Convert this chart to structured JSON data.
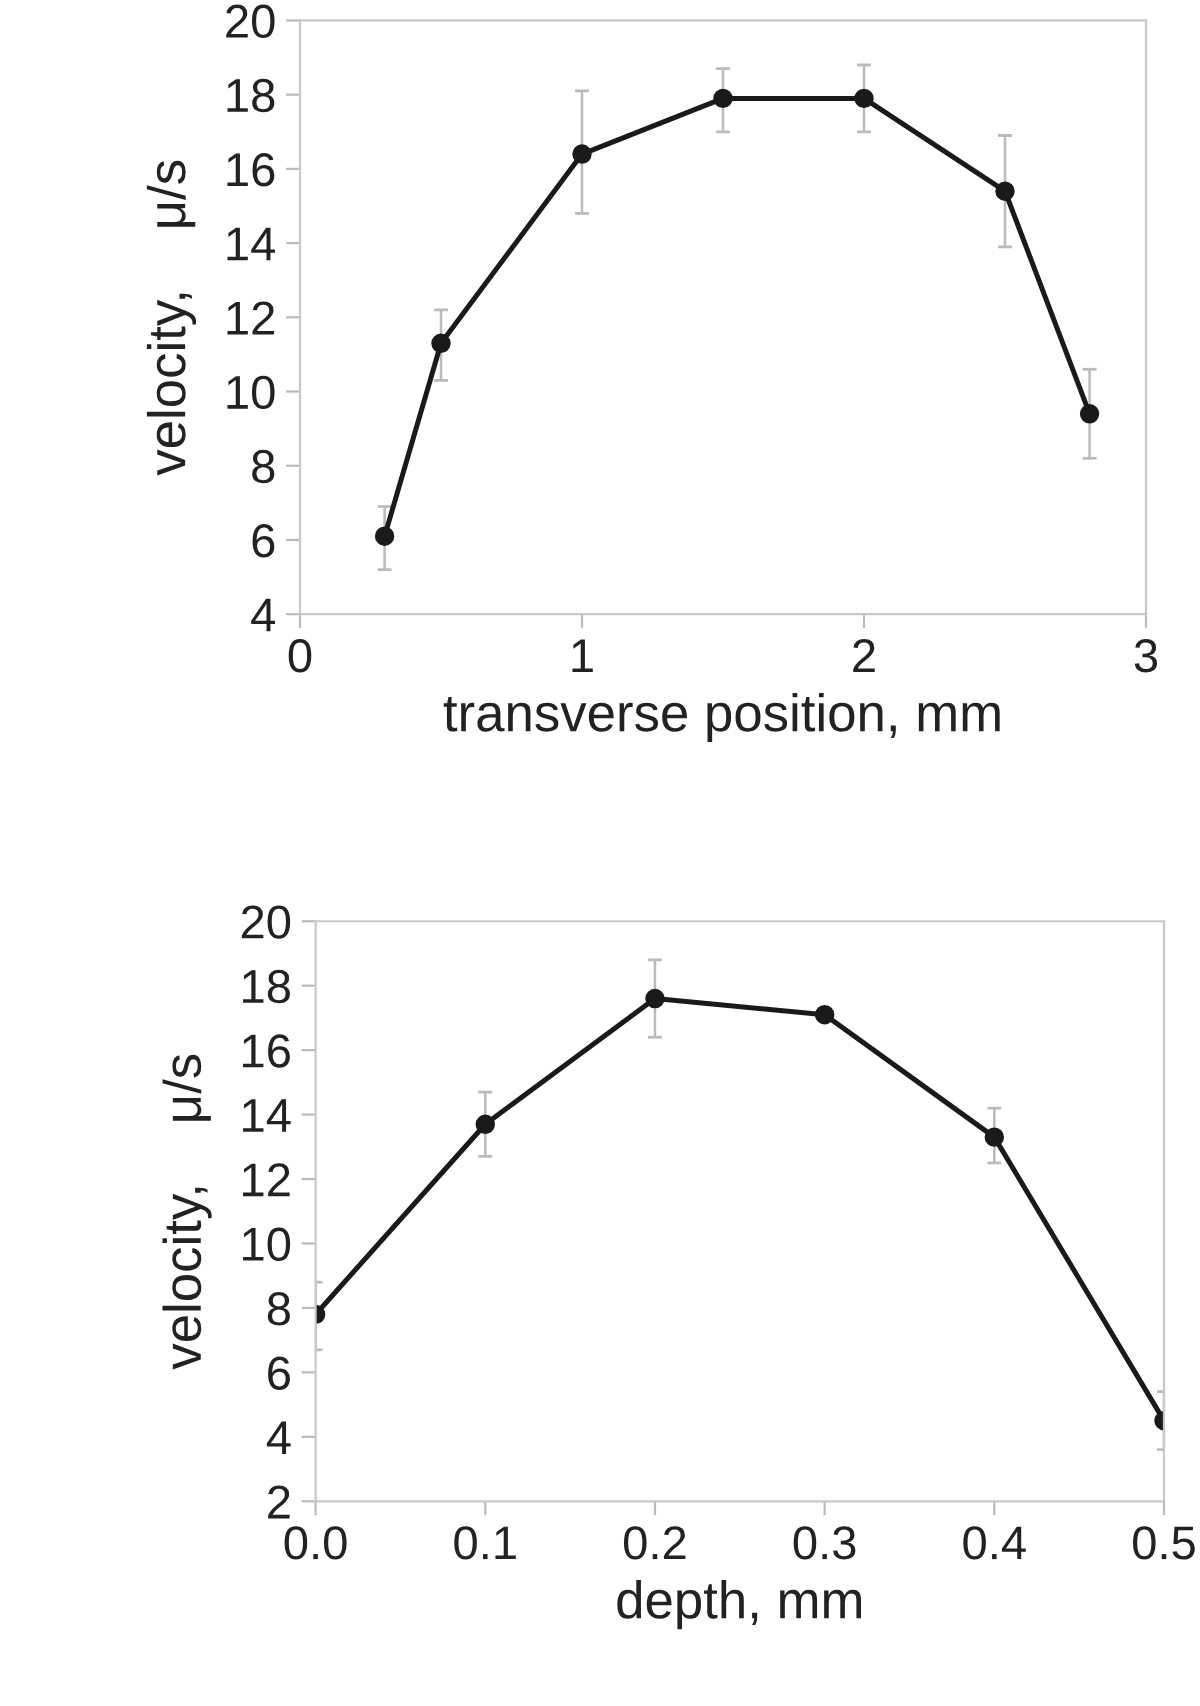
{
  "chart_data": [
    {
      "type": "line",
      "xlabel": "transverse position, mm",
      "ylabel": "velocity,    μ/s",
      "x": [
        0.3,
        0.5,
        1,
        1.5,
        2,
        2.5,
        2.8
      ],
      "series": [
        {
          "color": "#1a1a1a",
          "values": [
            6.1,
            11.3,
            16.4,
            17.9,
            17.9,
            15.4,
            9.4
          ],
          "errors": [
            [
              5.2,
              6.9
            ],
            [
              10.3,
              12.2
            ],
            [
              14.8,
              18.1
            ],
            [
              17.0,
              18.7
            ],
            [
              17.0,
              18.8
            ],
            [
              13.9,
              16.9
            ],
            [
              8.2,
              10.6
            ]
          ]
        }
      ],
      "xlim": [
        0,
        3
      ],
      "xticks": [
        0,
        1,
        2,
        3
      ],
      "ylim": [
        4,
        20
      ],
      "yticks": [
        4,
        6,
        8,
        10,
        12,
        14,
        16,
        18,
        20
      ],
      "marker": "circle",
      "line_style": "solid",
      "grid": false
    },
    {
      "type": "line",
      "xlabel": "depth, mm",
      "ylabel": "velocity,    μ/s",
      "x": [
        0,
        0.1,
        0.2,
        0.3,
        0.4,
        0.5
      ],
      "series": [
        {
          "color": "#1a1a1a",
          "values": [
            7.8,
            13.7,
            17.6,
            17.1,
            13.3,
            4.5
          ],
          "errors": [
            [
              6.7,
              8.8
            ],
            [
              12.7,
              14.7
            ],
            [
              16.4,
              18.8
            ],
            null,
            [
              12.5,
              14.2
            ],
            [
              3.6,
              5.4
            ]
          ]
        }
      ],
      "xlim": [
        0,
        0.5
      ],
      "xticks": [
        {
          "value": 0,
          "label": "0.0"
        },
        {
          "value": 0.1,
          "label": "0.1"
        },
        {
          "value": 0.2,
          "label": "0.2"
        },
        {
          "value": 0.3,
          "label": "0.3"
        },
        {
          "value": 0.4,
          "label": "0.4"
        },
        {
          "value": 0.5,
          "label": "0.5"
        }
      ],
      "ylim": [
        2,
        20
      ],
      "yticks": [
        2,
        4,
        6,
        8,
        10,
        12,
        14,
        16,
        18,
        20
      ],
      "marker": "circle",
      "line_style": "solid",
      "grid": false
    }
  ]
}
